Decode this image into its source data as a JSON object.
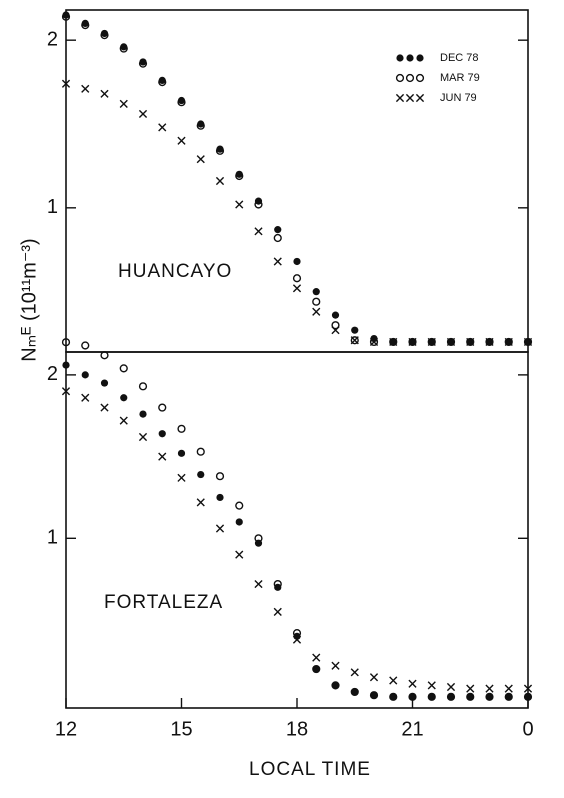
{
  "chart_data": [
    {
      "type": "scatter",
      "annotation": "HUANCAYO",
      "y_label": "Nₘᴱ (10¹¹m⁻³)",
      "legend": "upper right",
      "x": [
        12,
        12.5,
        13,
        13.5,
        14,
        14.5,
        15,
        15.5,
        16,
        16.5,
        17,
        17.5,
        18,
        18.5,
        19,
        19.5,
        20,
        20.5,
        21,
        21.5,
        22,
        22.5,
        23,
        23.5,
        24
      ],
      "xlim": [
        12,
        24
      ],
      "ylim": [
        0.14,
        2.18
      ],
      "yticks": [
        1,
        2
      ],
      "series": [
        {
          "name": "DEC 78",
          "color": "#111111",
          "marker": "dot",
          "values": [
            2.15,
            2.1,
            2.04,
            1.96,
            1.87,
            1.76,
            1.64,
            1.5,
            1.35,
            1.2,
            1.04,
            0.87,
            0.68,
            0.5,
            0.36,
            0.27,
            0.22,
            0.2,
            0.2,
            0.2,
            0.2,
            0.2,
            0.2,
            0.2,
            0.2
          ]
        },
        {
          "name": "MAR 79",
          "color": "#111111",
          "marker": "circle",
          "values": [
            2.14,
            2.09,
            2.03,
            1.95,
            1.86,
            1.75,
            1.63,
            1.49,
            1.34,
            1.19,
            1.02,
            0.82,
            0.58,
            0.44,
            0.3,
            0.21,
            0.2,
            0.2,
            0.2,
            0.2,
            0.2,
            0.2,
            0.2,
            0.2,
            0.2
          ]
        },
        {
          "name": "JUN 79",
          "color": "#111111",
          "marker": "x",
          "values": [
            1.74,
            1.71,
            1.68,
            1.62,
            1.56,
            1.48,
            1.4,
            1.29,
            1.16,
            1.02,
            0.86,
            0.68,
            0.52,
            0.38,
            0.27,
            0.21,
            0.2,
            0.2,
            0.2,
            0.2,
            0.2,
            0.2,
            0.2,
            0.2,
            0.2
          ]
        }
      ]
    },
    {
      "type": "scatter",
      "annotation": "FORTALEZA",
      "x_label": "LOCAL TIME",
      "x": [
        12,
        12.5,
        13,
        13.5,
        14,
        14.5,
        15,
        15.5,
        16,
        16.5,
        17,
        17.5,
        18,
        18.5,
        19,
        19.5,
        20,
        20.5,
        21,
        21.5,
        22,
        22.5,
        23,
        23.5,
        24
      ],
      "xlim": [
        12,
        24
      ],
      "xticks": [
        12,
        15,
        18,
        21,
        {
          "value": 24,
          "label": "0"
        }
      ],
      "ylim": [
        -0.02,
        2.14
      ],
      "yticks": [
        1,
        2
      ],
      "series": [
        {
          "name": "DEC 78",
          "color": "#111111",
          "marker": "dot",
          "values": [
            2.06,
            2.0,
            1.95,
            1.86,
            1.76,
            1.64,
            1.52,
            1.39,
            1.25,
            1.1,
            0.97,
            0.7,
            0.4,
            0.2,
            0.1,
            0.06,
            0.04,
            0.03,
            0.03,
            0.03,
            0.03,
            0.03,
            0.03,
            0.03,
            0.03
          ]
        },
        {
          "name": "MAR 79",
          "color": "#111111",
          "marker": "circle",
          "values": [
            2.2,
            2.18,
            2.12,
            2.04,
            1.93,
            1.8,
            1.67,
            1.53,
            1.38,
            1.2,
            1.0,
            0.72,
            0.42,
            0.2,
            0.1,
            0.06,
            0.04,
            0.03,
            0.03,
            0.03,
            0.03,
            0.03,
            0.03,
            0.03,
            0.03
          ]
        },
        {
          "name": "JUN 79",
          "color": "#111111",
          "marker": "x",
          "values": [
            1.9,
            1.86,
            1.8,
            1.72,
            1.62,
            1.5,
            1.37,
            1.22,
            1.06,
            0.9,
            0.72,
            0.55,
            0.38,
            0.27,
            0.22,
            0.18,
            0.15,
            0.13,
            0.11,
            0.1,
            0.09,
            0.08,
            0.08,
            0.08,
            0.08
          ]
        }
      ]
    }
  ]
}
